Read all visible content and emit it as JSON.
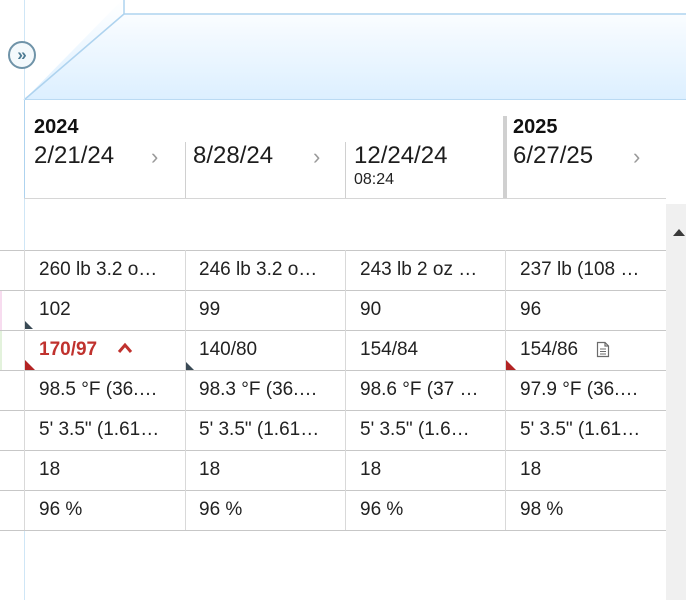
{
  "flowsheet": {
    "expand_icon": "double-chevron-right-icon",
    "columns": [
      {
        "year": "2024",
        "date": "2/21/24",
        "time": "",
        "has_chevron": true
      },
      {
        "year": "",
        "date": "8/28/24",
        "time": "",
        "has_chevron": true
      },
      {
        "year": "",
        "date": "12/24/24",
        "time": "08:24",
        "has_chevron": false
      },
      {
        "year": "2025",
        "date": "6/27/25",
        "time": "",
        "has_chevron": true
      }
    ],
    "rows": [
      [
        "260 lb 3.2 o…",
        "246 lb 3.2 o…",
        "243 lb 2 oz …",
        "237 lb (108 …"
      ],
      [
        "102",
        "99",
        "90",
        "96"
      ],
      [
        "170/97",
        "140/80",
        "154/84",
        "154/86"
      ],
      [
        "98.5 °F (36.…",
        "98.3 °F (36.…",
        "98.6 °F (37 …",
        "97.9 °F (36.…"
      ],
      [
        "5' 3.5\" (1.61…",
        "5' 3.5\" (1.61…",
        "5' 3.5\" (1.6…",
        "5' 3.5\" (1.61…"
      ],
      [
        "18",
        "18",
        "18",
        "18"
      ],
      [
        "96 %",
        "96 %",
        "96 %",
        "98 %"
      ]
    ],
    "abnormal": {
      "row": 2,
      "col": 0,
      "flag_icon": "high-arrow-icon"
    },
    "note_icon": "document-icon",
    "colors": {
      "abnormal": "#c0322e",
      "header_gradient_bottom": "#dcefff",
      "border": "#aed3ef"
    }
  }
}
